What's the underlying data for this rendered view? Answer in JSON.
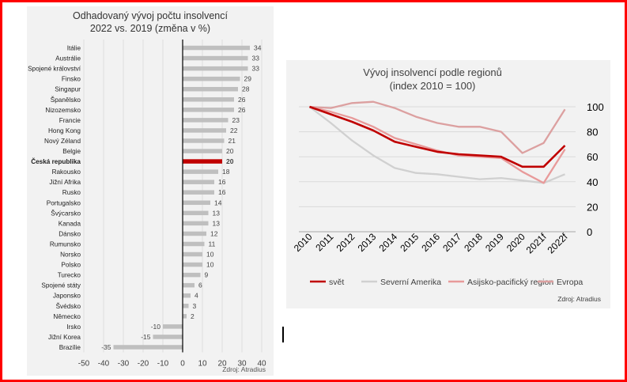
{
  "chart_data": [
    {
      "type": "bar",
      "orientation": "horizontal",
      "title": [
        "Odhadovaný vývoj počtu insolvencí",
        "2022 vs. 2019 (změna v %)"
      ],
      "source": "Zdroj: Atradius",
      "xlim": [
        -50,
        40
      ],
      "xticks": [
        "-50",
        "-40",
        "-30",
        "-20",
        "-10",
        "0",
        "10",
        "20",
        "30",
        "40"
      ],
      "highlight": "Česká republika",
      "colors": {
        "bar": "#bfbfbf",
        "highlight": "#c00000"
      },
      "categories": [
        "Itálie",
        "Austrálie",
        "Spojené království",
        "Finsko",
        "Singapur",
        "Španělsko",
        "Nizozemsko",
        "Francie",
        "Hong Kong",
        "Nový Zéland",
        "Belgie",
        "Česká republika",
        "Rakousko",
        "Jižní Afrika",
        "Rusko",
        "Portugalsko",
        "Švýcarsko",
        "Kanada",
        "Dánsko",
        "Rumunsko",
        "Norsko",
        "Polsko",
        "Turecko",
        "Spojené státy",
        "Japonsko",
        "Švédsko",
        "Německo",
        "Irsko",
        "Jižní Korea",
        "Brazílie"
      ],
      "values": [
        34,
        33,
        33,
        29,
        28,
        26,
        26,
        23,
        22,
        21,
        20,
        20,
        18,
        16,
        16,
        14,
        13,
        13,
        12,
        11,
        10,
        10,
        9,
        6,
        4,
        3,
        2,
        -10,
        -15,
        -35
      ]
    },
    {
      "type": "line",
      "title": [
        "Vývoj insolvencí podle regionů",
        "(index 2010 = 100)"
      ],
      "source": "Zdroj: Atradius",
      "categories": [
        "2010",
        "2011",
        "2012",
        "2013",
        "2014",
        "2015",
        "2016",
        "2017",
        "2018",
        "2019",
        "2020",
        "2021f",
        "2022f"
      ],
      "ylim": [
        0,
        100
      ],
      "yticks": [
        "0",
        "20",
        "40",
        "60",
        "80",
        "100"
      ],
      "legend_position": "bottom",
      "grid": true,
      "series": [
        {
          "name": "svět",
          "color": "#c00000",
          "values": [
            100,
            94,
            88,
            81,
            72,
            68,
            64,
            62,
            61,
            60,
            52,
            52,
            69
          ]
        },
        {
          "name": "Severní Amerika",
          "color": "#d0d0d0",
          "values": [
            100,
            87,
            73,
            61,
            51,
            47,
            46,
            44,
            42,
            43,
            41,
            39,
            46
          ]
        },
        {
          "name": "Asijsko-pacifický region",
          "color": "#e89a9a",
          "values": [
            100,
            96,
            91,
            84,
            75,
            70,
            65,
            61,
            60,
            59,
            48,
            39,
            66
          ]
        },
        {
          "name": "Evropa",
          "color": "#dca0a0",
          "values": [
            100,
            99,
            103,
            104,
            99,
            92,
            87,
            84,
            84,
            80,
            63,
            71,
            98
          ]
        }
      ]
    }
  ]
}
